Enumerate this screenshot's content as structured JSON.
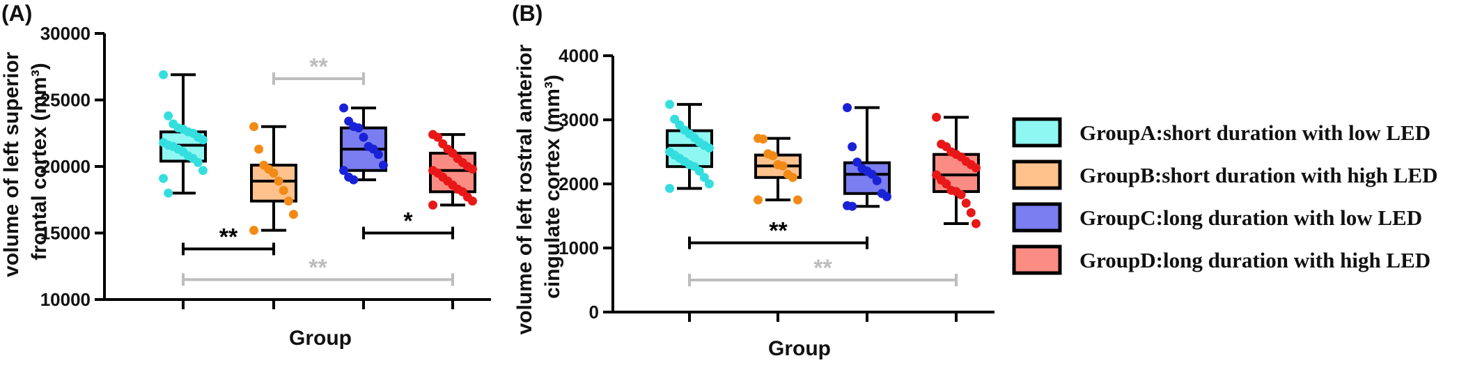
{
  "chart_data": [
    {
      "type": "box",
      "panel_label": "(A)",
      "ylabel": "volume of left superior frontal cortex (mm³)",
      "ylabel_lines": [
        "volume of left superior",
        "frontal cortex (mm³)"
      ],
      "xlabel": "Group",
      "ylim": [
        10000,
        30000
      ],
      "yticks": [
        10000,
        15000,
        20000,
        25000,
        30000
      ],
      "ytick_labels": [
        "10000",
        "15000",
        "20000",
        "25000",
        "30000"
      ],
      "groups": [
        {
          "name": "GroupA",
          "whisker_low": 18000,
          "q1": 20400,
          "median": 21600,
          "q3": 22600,
          "whisker_high": 26900,
          "points": [
            26900,
            23800,
            23200,
            22900,
            22800,
            22600,
            22500,
            22200,
            22000,
            21800,
            21600,
            21500,
            21300,
            21100,
            20800,
            20600,
            20300,
            19700,
            19100,
            18000
          ]
        },
        {
          "name": "GroupB",
          "whisker_low": 15200,
          "q1": 17400,
          "median": 18900,
          "q3": 20100,
          "whisker_high": 23000,
          "points": [
            23000,
            21300,
            20100,
            19800,
            19500,
            18900,
            18200,
            17400,
            16400,
            15200
          ]
        },
        {
          "name": "GroupC",
          "whisker_low": 19000,
          "q1": 19700,
          "median": 21300,
          "q3": 22900,
          "whisker_high": 24400,
          "points": [
            24400,
            23400,
            23000,
            22900,
            22200,
            21500,
            21300,
            20900,
            20100,
            19700,
            19200,
            19000
          ]
        },
        {
          "name": "GroupD",
          "whisker_low": 17100,
          "q1": 18100,
          "median": 19700,
          "q3": 21000,
          "whisker_high": 22400,
          "points": [
            22400,
            22200,
            21700,
            21300,
            21000,
            20600,
            20300,
            20000,
            19800,
            19700,
            19500,
            19200,
            18900,
            18600,
            18300,
            18100,
            17700,
            17400,
            17100
          ]
        }
      ],
      "significance": [
        {
          "from": 0,
          "to": 1,
          "y": 13800,
          "label": "**",
          "color": "#000000"
        },
        {
          "from": 1,
          "to": 2,
          "y": 26600,
          "label": "**",
          "color": "#bdbdbd"
        },
        {
          "from": 2,
          "to": 3,
          "y": 15000,
          "label": "*",
          "color": "#000000"
        },
        {
          "from": 0,
          "to": 3,
          "y": 11500,
          "label": "**",
          "color": "#bdbdbd"
        }
      ]
    },
    {
      "type": "box",
      "panel_label": "(B)",
      "ylabel": "volume of left rostral anterior cingulate cortex (mm³)",
      "ylabel_lines": [
        "volume of left rostral anterior",
        "cingulate cortex (mm³)"
      ],
      "xlabel": "Group",
      "ylim": [
        0,
        4000
      ],
      "yticks": [
        0,
        1000,
        2000,
        3000,
        4000
      ],
      "ytick_labels": [
        "0",
        "1000",
        "2000",
        "3000",
        "4000"
      ],
      "groups": [
        {
          "name": "GroupA",
          "whisker_low": 1930,
          "q1": 2270,
          "median": 2600,
          "q3": 2830,
          "whisker_high": 3240,
          "points": [
            3240,
            3010,
            2920,
            2840,
            2780,
            2720,
            2650,
            2600,
            2560,
            2500,
            2450,
            2400,
            2350,
            2300,
            2270,
            2200,
            2100,
            2000,
            1930
          ]
        },
        {
          "name": "GroupB",
          "whisker_low": 1750,
          "q1": 2100,
          "median": 2280,
          "q3": 2450,
          "whisker_high": 2710,
          "points": [
            2710,
            2700,
            2470,
            2440,
            2300,
            2280,
            2150,
            2100,
            1750,
            1750
          ]
        },
        {
          "name": "GroupC",
          "whisker_low": 1650,
          "q1": 1850,
          "median": 2150,
          "q3": 2330,
          "whisker_high": 3190,
          "points": [
            3190,
            2580,
            2340,
            2240,
            2200,
            2150,
            2050,
            1850,
            1800,
            1660,
            1650
          ]
        },
        {
          "name": "GroupD",
          "whisker_low": 1380,
          "q1": 1880,
          "median": 2140,
          "q3": 2460,
          "whisker_high": 3040,
          "points": [
            3040,
            2620,
            2580,
            2500,
            2460,
            2420,
            2350,
            2300,
            2250,
            2140,
            2060,
            2000,
            1900,
            1880,
            1830,
            1700,
            1550,
            1380
          ]
        }
      ],
      "significance": [
        {
          "from": 0,
          "to": 2,
          "y": 1080,
          "label": "**",
          "color": "#000000"
        },
        {
          "from": 0,
          "to": 3,
          "y": 500,
          "label": "**",
          "color": "#bdbdbd"
        }
      ]
    }
  ],
  "series_colors": {
    "GroupA": {
      "fill": "#8ff7f2",
      "point": "#35dede"
    },
    "GroupB": {
      "fill": "#ffc28c",
      "point": "#f28a16"
    },
    "GroupC": {
      "fill": "#7a7ef0",
      "point": "#1a22d8"
    },
    "GroupD": {
      "fill": "#fa8c84",
      "point": "#e81818"
    }
  },
  "legend": {
    "position": "right",
    "items": [
      {
        "key": "GroupA",
        "label": "GroupA:short duration with low LED"
      },
      {
        "key": "GroupB",
        "label": "GroupB:short duration with high LED"
      },
      {
        "key": "GroupC",
        "label": "GroupC:long duration with low LED"
      },
      {
        "key": "GroupD",
        "label": "GroupD:long duration with high LED"
      }
    ]
  }
}
